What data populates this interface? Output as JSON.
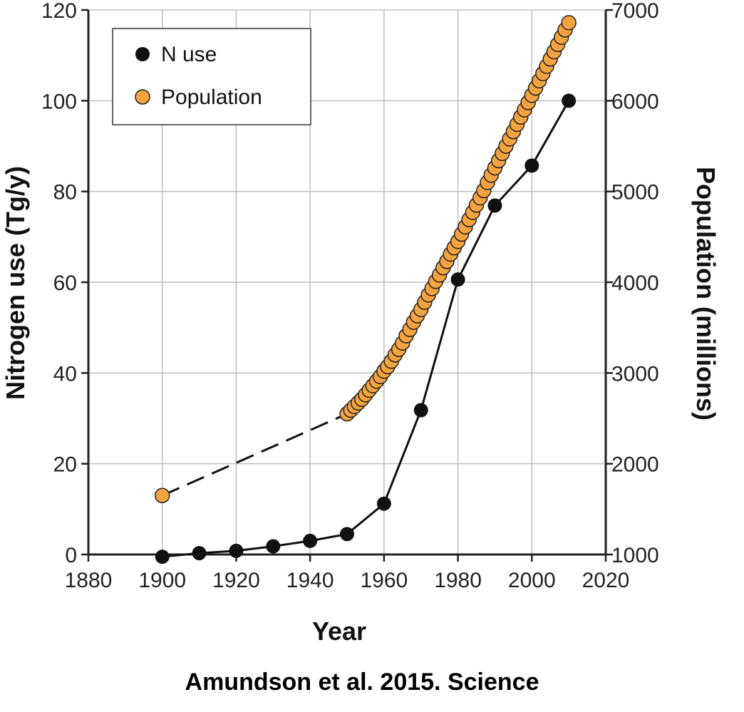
{
  "chart_data": {
    "type": "scatter",
    "xlabel": "Year",
    "ylabel_left": "Nitrogen use (Tg/y)",
    "ylabel_right": "Population (millions)",
    "xlim": [
      1880,
      2020
    ],
    "ylim_left": [
      0,
      120
    ],
    "ylim_right": [
      1000,
      7000
    ],
    "x_ticks": [
      "1880",
      "1900",
      "1920",
      "1940",
      "1960",
      "1980",
      "2000",
      "2020"
    ],
    "y_left_ticks": [
      "0",
      "20",
      "40",
      "60",
      "80",
      "100",
      "120"
    ],
    "y_right_ticks": [
      "1000",
      "2000",
      "3000",
      "4000",
      "5000",
      "6000",
      "7000"
    ],
    "grid": true,
    "legend_position": "top-left",
    "series": [
      {
        "name": "N use",
        "axis": "left",
        "color": "#111111",
        "line": "solid",
        "x": [
          1900,
          1910,
          1920,
          1930,
          1940,
          1950,
          1960,
          1970,
          1980,
          1990,
          2000,
          2010
        ],
        "y": [
          -0.5,
          0.3,
          0.8,
          1.8,
          3.0,
          4.5,
          11.2,
          31.8,
          60.6,
          76.9,
          85.7,
          100.0
        ]
      },
      {
        "name": "Population",
        "axis": "right",
        "color": "#f4a340",
        "line": "dashed 1900-1950",
        "x": [
          1900,
          1950,
          1951,
          1952,
          1953,
          1954,
          1955,
          1956,
          1957,
          1958,
          1959,
          1960,
          1961,
          1962,
          1963,
          1964,
          1965,
          1966,
          1967,
          1968,
          1969,
          1970,
          1971,
          1972,
          1973,
          1974,
          1975,
          1976,
          1977,
          1978,
          1979,
          1980,
          1981,
          1982,
          1983,
          1984,
          1985,
          1986,
          1987,
          1988,
          1989,
          1990,
          1991,
          1992,
          1993,
          1994,
          1995,
          1996,
          1997,
          1998,
          1999,
          2000,
          2001,
          2002,
          2003,
          2004,
          2005,
          2006,
          2007,
          2008,
          2009,
          2010
        ],
        "y": [
          1650,
          2550,
          2590,
          2630,
          2670,
          2710,
          2760,
          2810,
          2860,
          2910,
          2960,
          3020,
          3070,
          3130,
          3200,
          3260,
          3330,
          3410,
          3480,
          3560,
          3630,
          3700,
          3780,
          3860,
          3930,
          4010,
          4080,
          4160,
          4230,
          4310,
          4380,
          4450,
          4530,
          4610,
          4690,
          4770,
          4850,
          4930,
          5010,
          5100,
          5180,
          5260,
          5340,
          5420,
          5500,
          5580,
          5660,
          5740,
          5820,
          5900,
          5980,
          6060,
          6140,
          6220,
          6300,
          6380,
          6460,
          6540,
          6620,
          6700,
          6780,
          6860
        ]
      }
    ]
  },
  "caption": "Amundson et al. 2015. Science"
}
